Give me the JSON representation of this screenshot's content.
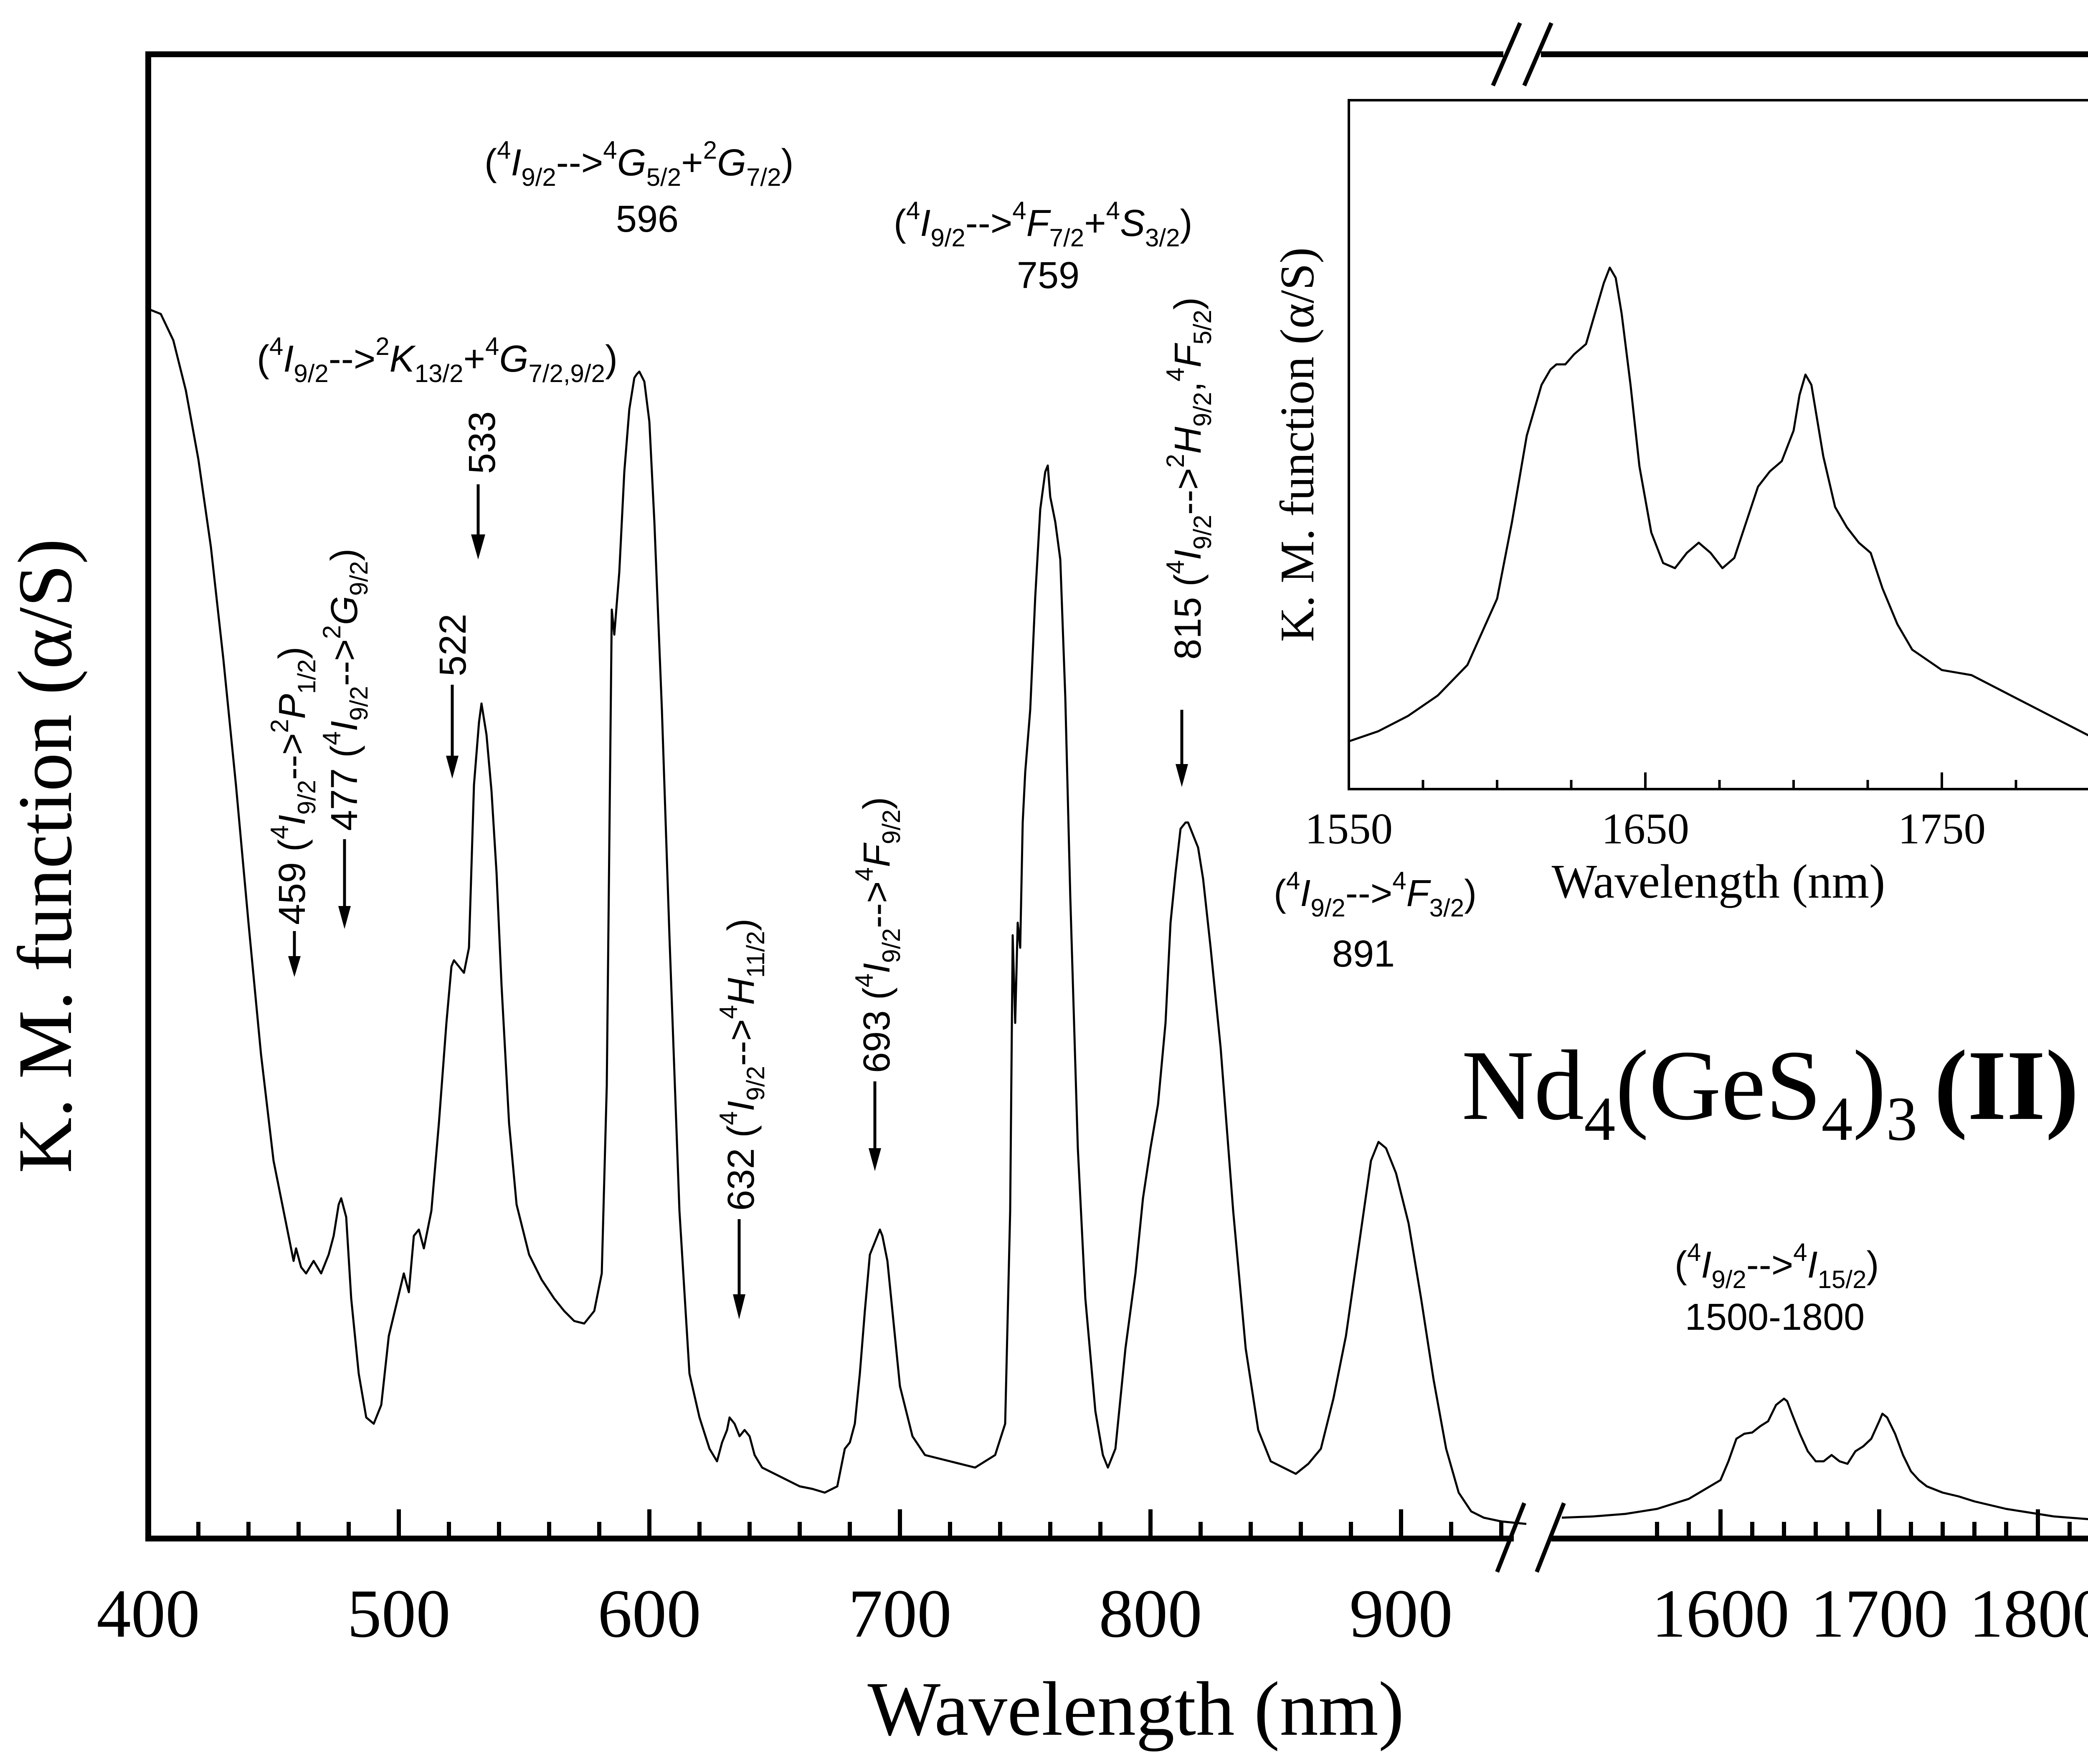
{
  "chart_data": [
    {
      "type": "line",
      "xlabel": "Wavelength (nm)",
      "ylabel": "K. M. function (α/S)",
      "compound_base": "Nd",
      "compound_sub1": "4",
      "compound_mid": "(GeS",
      "compound_sub2": "4",
      "compound_close": ")",
      "compound_sub3": "3",
      "compound_label": "(II)",
      "axis_break": true,
      "xlim_left": [
        400,
        950
      ],
      "xlim_right": [
        1500,
        1850
      ],
      "xticks_left": [
        "400",
        "500",
        "600",
        "700",
        "800",
        "900"
      ],
      "xticks_right": [
        "1600",
        "1700",
        "1800"
      ],
      "y_ticks_shown": false,
      "series": [
        {
          "x": [
            400,
            405,
            410,
            415,
            420,
            425,
            430,
            435,
            440,
            445,
            450,
            455,
            458,
            459,
            461,
            463,
            466,
            469,
            472,
            474,
            476,
            477,
            479,
            481,
            484,
            487,
            490,
            493,
            496,
            499,
            502,
            504,
            506,
            508,
            510,
            513,
            516,
            519,
            521,
            522,
            524,
            526,
            528,
            530,
            532,
            533,
            535,
            537,
            539,
            541,
            544,
            547,
            552,
            557,
            562,
            566,
            570,
            574,
            578,
            581,
            583,
            584,
            585,
            586,
            588,
            590,
            592,
            594,
            595,
            596,
            598,
            600,
            602,
            605,
            608,
            612,
            616,
            620,
            624,
            627,
            629,
            631,
            632,
            634,
            636,
            638,
            640,
            642,
            645,
            650,
            655,
            660,
            665,
            670,
            675,
            678,
            680,
            682,
            684,
            686,
            688,
            690,
            691,
            692,
            693,
            695,
            697,
            700,
            705,
            710,
            720,
            730,
            738,
            742,
            744,
            745,
            746,
            747,
            748,
            749,
            750,
            752,
            754,
            756,
            758,
            759,
            760,
            762,
            764,
            766,
            768,
            771,
            774,
            778,
            781,
            783,
            786,
            790,
            794,
            797,
            800,
            803,
            806,
            808,
            810,
            812,
            814,
            815,
            817,
            819,
            821,
            824,
            828,
            833,
            838,
            843,
            848,
            853,
            858,
            863,
            868,
            873,
            878,
            883,
            888,
            891,
            894,
            898,
            903,
            908,
            913,
            918,
            923,
            928,
            933,
            940,
            950
          ],
          "y": [
            970,
            966,
            945,
            905,
            850,
            780,
            690,
            590,
            480,
            375,
            290,
            240,
            210,
            220,
            205,
            200,
            210,
            200,
            215,
            230,
            255,
            260,
            245,
            180,
            120,
            85,
            80,
            95,
            150,
            175,
            200,
            185,
            230,
            235,
            220,
            250,
            320,
            400,
            445,
            450,
            445,
            440,
            460,
            590,
            640,
            655,
            630,
            585,
            520,
            430,
            320,
            255,
            215,
            195,
            180,
            170,
            162,
            160,
            170,
            200,
            350,
            540,
            730,
            710,
            760,
            840,
            890,
            915,
            918,
            920,
            912,
            880,
            800,
            650,
            470,
            250,
            120,
            85,
            60,
            50,
            65,
            75,
            85,
            80,
            70,
            75,
            70,
            55,
            45,
            40,
            35,
            30,
            28,
            25,
            30,
            60,
            65,
            80,
            120,
            170,
            215,
            225,
            230,
            235,
            230,
            210,
            170,
            110,
            70,
            55,
            50,
            45,
            55,
            80,
            250,
            470,
            400,
            480,
            460,
            560,
            600,
            650,
            740,
            810,
            840,
            845,
            820,
            800,
            770,
            660,
            500,
            300,
            180,
            90,
            55,
            45,
            60,
            140,
            200,
            260,
            300,
            335,
            400,
            480,
            520,
            555,
            560,
            560,
            550,
            540,
            515,
            460,
            380,
            250,
            140,
            75,
            50,
            45,
            40,
            48,
            60,
            100,
            150,
            220,
            290,
            305,
            300,
            280,
            240,
            180,
            115,
            60,
            25,
            10,
            5,
            2,
            0
          ]
        },
        {
          "x": [
            1500,
            1520,
            1540,
            1560,
            1580,
            1600,
            1605,
            1610,
            1615,
            1620,
            1625,
            1630,
            1635,
            1640,
            1642,
            1645,
            1650,
            1655,
            1660,
            1665,
            1670,
            1675,
            1680,
            1685,
            1690,
            1695,
            1700,
            1702,
            1705,
            1710,
            1715,
            1720,
            1725,
            1730,
            1740,
            1750,
            1760,
            1770,
            1780,
            1790,
            1800,
            1810,
            1820,
            1830,
            1840,
            1850
          ],
          "y": [
            5,
            6,
            8,
            12,
            20,
            35,
            50,
            68,
            72,
            73,
            78,
            82,
            95,
            100,
            98,
            88,
            72,
            58,
            50,
            50,
            55,
            50,
            48,
            58,
            62,
            68,
            82,
            88,
            85,
            72,
            55,
            42,
            35,
            30,
            25,
            22,
            18,
            15,
            12,
            10,
            8,
            6,
            5,
            4,
            3,
            2
          ]
        }
      ],
      "annotations": [
        {
          "line1_pre": "(",
          "sup": "4",
          "line1_i": "I",
          "sub1": "9/2",
          "arrow": "-->",
          "sup2": "4",
          "t2": "G",
          "sub2": "5/2",
          "plus": "+",
          "sup3": "2",
          "t3": "G",
          "sub3": "7/2",
          "close": ")",
          "value": "596"
        },
        {
          "line1_pre": "(",
          "sup": "4",
          "line1_i": "I",
          "sub1": "9/2",
          "arrow": "-->",
          "sup2": "2",
          "t2": "K",
          "sub2": "13/2",
          "plus": "+",
          "sup3": "4",
          "t3": "G",
          "sub3": "7/2,9/2",
          "close": ")",
          "value": "533"
        },
        {
          "line1_pre": "(",
          "sup": "4",
          "line1_i": "I",
          "sub1": "9/2",
          "arrow": "-->",
          "sup2": "4",
          "t2": "F",
          "sub2": "7/2",
          "plus": "+",
          "sup3": "4",
          "t3": "S",
          "sub3": "3/2",
          "close": ")",
          "value": "759"
        },
        {
          "line1_pre": "(",
          "sup": "4",
          "line1_i": "I",
          "sub1": "9/2",
          "arrow": "-->",
          "sup2": "4",
          "t2": "F",
          "sub2": "3/2",
          "close": ")",
          "value": "891"
        },
        {
          "line1_pre": "(",
          "sup": "4",
          "line1_i": "I",
          "sub1": "9/2",
          "arrow": "-->",
          "sup2": "4",
          "t2": "I",
          "sub2": "15/2",
          "close": ")",
          "value": "1500-1800"
        }
      ],
      "vertical_labels": [
        {
          "value": "459",
          "pre": "(",
          "sup": "4",
          "i": "I",
          "sub1": "9/2",
          "arrow": "-->",
          "sup2": "2",
          "t2": "P",
          "sub2": "1/2",
          "close": ")"
        },
        {
          "value": "477",
          "pre": "(",
          "sup": "4",
          "i": "I",
          "sub1": "9/2",
          "arrow": "-->",
          "sup2": "2",
          "t2": "G",
          "sub2": "9/2",
          "close": ")"
        },
        {
          "value": "522"
        },
        {
          "value": "632",
          "pre": "(",
          "sup": "4",
          "i": "I",
          "sub1": "9/2",
          "arrow": "-->",
          "sup2": "4",
          "t2": "H",
          "sub2": "11/2",
          "close": ")"
        },
        {
          "value": "693",
          "pre": "(",
          "sup": "4",
          "i": "I",
          "sub1": "9/2",
          "arrow": "-->",
          "sup2": "4",
          "t2": "F",
          "sub2": "9/2",
          "close": ")"
        },
        {
          "value": "815",
          "pre": "(",
          "sup": "4",
          "i": "I",
          "sub1": "9/2",
          "arrow": "-->",
          "sup2": "2",
          "t2": "H",
          "sub2": "9/2",
          "comma": ",",
          "sup3": "4",
          "t3": "F",
          "sub3": "5/2",
          "close": ")"
        }
      ]
    },
    {
      "type": "line",
      "title": "",
      "xlabel": "Wavelength (nm)",
      "ylabel": "K. M. function (α/S)",
      "xlim": [
        1550,
        1800
      ],
      "xticks": [
        "1550",
        "1650",
        "1750"
      ],
      "series": [
        {
          "x": [
            1550,
            1560,
            1570,
            1580,
            1590,
            1600,
            1605,
            1610,
            1615,
            1618,
            1620,
            1623,
            1626,
            1630,
            1633,
            1636,
            1638,
            1640,
            1642,
            1645,
            1648,
            1652,
            1656,
            1660,
            1664,
            1668,
            1672,
            1676,
            1680,
            1684,
            1688,
            1692,
            1696,
            1700,
            1702,
            1704,
            1706,
            1710,
            1714,
            1718,
            1722,
            1726,
            1730,
            1735,
            1740,
            1750,
            1760,
            1770,
            1780,
            1790,
            1800
          ],
          "y": [
            2,
            4,
            7,
            11,
            17,
            30,
            45,
            62,
            72,
            75,
            76,
            76,
            78,
            80,
            86,
            92,
            95,
            93,
            86,
            72,
            56,
            43,
            37,
            36,
            39,
            41,
            39,
            36,
            38,
            45,
            52,
            55,
            57,
            63,
            70,
            74,
            72,
            58,
            48,
            44,
            41,
            39,
            32,
            25,
            20,
            16,
            15,
            12,
            9,
            6,
            3
          ]
        }
      ]
    }
  ]
}
